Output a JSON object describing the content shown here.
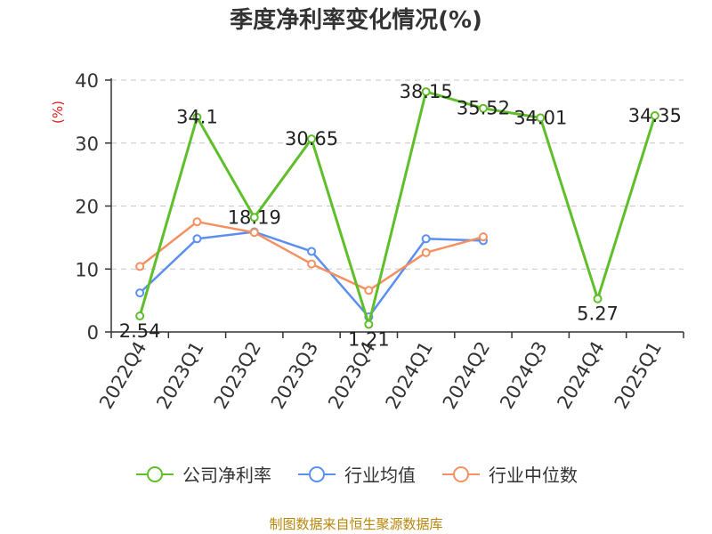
{
  "chart_data": {
    "type": "line",
    "title": "季度净利率变化情况(%)",
    "ylabel": "(%)",
    "xlabel": "",
    "ylim": [
      0,
      40
    ],
    "yticks": [
      0,
      10,
      20,
      30,
      40
    ],
    "grid": true,
    "legend_position": "bottom",
    "categories": [
      "2022Q4",
      "2023Q1",
      "2023Q2",
      "2023Q3",
      "2023Q4",
      "2024Q1",
      "2024Q2",
      "2024Q3",
      "2024Q4",
      "2025Q1"
    ],
    "series": [
      {
        "name": "公司净利率",
        "color": "#5fbf2a",
        "values": [
          2.54,
          34.1,
          18.19,
          30.65,
          1.21,
          38.15,
          35.52,
          34.01,
          5.27,
          34.35
        ],
        "labels": [
          "2.54",
          "34.1",
          "18.19",
          "30.65",
          "1.21",
          "38.15",
          "35.52",
          "34.01",
          "5.27",
          "34.35"
        ]
      },
      {
        "name": "行业均值",
        "color": "#5b8ff0",
        "values": [
          6.2,
          14.8,
          15.9,
          12.8,
          2.4,
          14.8,
          14.5,
          null,
          null,
          null
        ]
      },
      {
        "name": "行业中位数",
        "color": "#f59161",
        "values": [
          10.4,
          17.5,
          15.8,
          10.8,
          6.6,
          12.6,
          15.1,
          null,
          null,
          null
        ]
      }
    ]
  },
  "source_note": "制图数据来自恒生聚源数据库"
}
